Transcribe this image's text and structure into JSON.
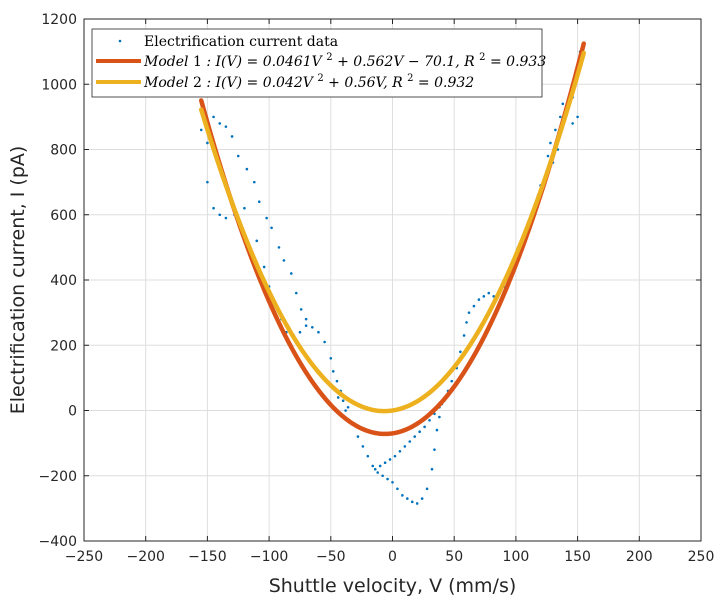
{
  "chart_data": {
    "type": "scatter",
    "title": "",
    "xlabel": "Shuttle velocity, V (mm/s)",
    "ylabel": "Electrification current, I (pA)",
    "xlim": [
      -250,
      250
    ],
    "ylim": [
      -400,
      1200
    ],
    "xticks": [
      -250,
      -200,
      -150,
      -100,
      -50,
      0,
      50,
      100,
      150,
      200,
      250
    ],
    "xtick_labels": [
      "−250",
      "−200",
      "−150",
      "−100",
      "−50",
      "0",
      "50",
      "100",
      "150",
      "200",
      "250"
    ],
    "yticks": [
      -400,
      -200,
      0,
      200,
      400,
      600,
      800,
      1000,
      1200
    ],
    "ytick_labels": [
      "−400",
      "−200",
      "0",
      "200",
      "400",
      "600",
      "800",
      "1000",
      "1200"
    ],
    "grid": true,
    "legend_position": "top-left",
    "series": [
      {
        "name": "Electrification current data",
        "kind": "scatter",
        "color": "#0072BD",
        "description_points": [
          [
            -155,
            860
          ],
          [
            -150,
            820
          ],
          [
            -145,
            900
          ],
          [
            -140,
            880
          ],
          [
            -135,
            870
          ],
          [
            -130,
            840
          ],
          [
            -150,
            700
          ],
          [
            -145,
            620
          ],
          [
            -140,
            600
          ],
          [
            -135,
            590
          ],
          [
            -128,
            600
          ],
          [
            -120,
            620
          ],
          [
            -125,
            780
          ],
          [
            -118,
            740
          ],
          [
            -112,
            700
          ],
          [
            -108,
            640
          ],
          [
            -102,
            590
          ],
          [
            -98,
            560
          ],
          [
            -92,
            500
          ],
          [
            -88,
            460
          ],
          [
            -82,
            420
          ],
          [
            -78,
            360
          ],
          [
            -74,
            310
          ],
          [
            -70,
            280
          ],
          [
            -110,
            520
          ],
          [
            -104,
            440
          ],
          [
            -100,
            380
          ],
          [
            -95,
            320
          ],
          [
            -90,
            280
          ],
          [
            -86,
            240
          ],
          [
            -80,
            230
          ],
          [
            -75,
            240
          ],
          [
            -70,
            260
          ],
          [
            -65,
            255
          ],
          [
            -60,
            240
          ],
          [
            -55,
            210
          ],
          [
            -50,
            160
          ],
          [
            -48,
            120
          ],
          [
            -45,
            90
          ],
          [
            -42,
            60
          ],
          [
            -40,
            30
          ],
          [
            -36,
            10
          ],
          [
            -50,
            80
          ],
          [
            -44,
            40
          ],
          [
            -38,
            0
          ],
          [
            -32,
            -40
          ],
          [
            -28,
            -80
          ],
          [
            -24,
            -110
          ],
          [
            -20,
            -140
          ],
          [
            -16,
            -170
          ],
          [
            -12,
            -190
          ],
          [
            -8,
            -200
          ],
          [
            -4,
            -210
          ],
          [
            0,
            -220
          ],
          [
            4,
            -240
          ],
          [
            8,
            -260
          ],
          [
            12,
            -270
          ],
          [
            16,
            -280
          ],
          [
            20,
            -285
          ],
          [
            24,
            -270
          ],
          [
            28,
            -240
          ],
          [
            32,
            -180
          ],
          [
            34,
            -120
          ],
          [
            36,
            -60
          ],
          [
            38,
            -20
          ],
          [
            40,
            20
          ],
          [
            -14,
            -180
          ],
          [
            -10,
            -170
          ],
          [
            -6,
            -160
          ],
          [
            -2,
            -150
          ],
          [
            2,
            -140
          ],
          [
            6,
            -125
          ],
          [
            10,
            -110
          ],
          [
            14,
            -95
          ],
          [
            18,
            -80
          ],
          [
            22,
            -65
          ],
          [
            26,
            -50
          ],
          [
            30,
            -30
          ],
          [
            34,
            -10
          ],
          [
            38,
            10
          ],
          [
            42,
            30
          ],
          [
            45,
            60
          ],
          [
            48,
            90
          ],
          [
            52,
            130
          ],
          [
            55,
            180
          ],
          [
            58,
            230
          ],
          [
            60,
            270
          ],
          [
            62,
            300
          ],
          [
            66,
            320
          ],
          [
            70,
            340
          ],
          [
            74,
            350
          ],
          [
            78,
            360
          ],
          [
            82,
            350
          ],
          [
            86,
            360
          ],
          [
            90,
            380
          ],
          [
            94,
            400
          ],
          [
            98,
            440
          ],
          [
            102,
            480
          ],
          [
            106,
            520
          ],
          [
            110,
            560
          ],
          [
            114,
            610
          ],
          [
            118,
            660
          ],
          [
            120,
            690
          ],
          [
            124,
            720
          ],
          [
            126,
            780
          ],
          [
            128,
            820
          ],
          [
            132,
            860
          ],
          [
            136,
            900
          ],
          [
            138,
            940
          ],
          [
            142,
            950
          ],
          [
            146,
            960
          ],
          [
            148,
            1000
          ],
          [
            150,
            1050
          ],
          [
            152,
            1100
          ],
          [
            150,
            900
          ],
          [
            146,
            880
          ],
          [
            140,
            920
          ],
          [
            134,
            800
          ],
          [
            130,
            760
          ],
          [
            122,
            700
          ]
        ]
      },
      {
        "name": "Model1 : I(V) = 0.0461V^2 + 0.562V − 70.1, R^2 = 0.933",
        "kind": "line",
        "color": "#D95319",
        "coefficients": {
          "a": 0.0461,
          "b": 0.562,
          "c": -70.1
        },
        "x_range": [
          -155,
          155
        ]
      },
      {
        "name": "Model2 : I(V) = 0.042V^2 + 0.56V, R^2 = 0.932",
        "kind": "line",
        "color": "#EDB120",
        "coefficients": {
          "a": 0.042,
          "b": 0.56,
          "c": 0
        },
        "x_range": [
          -155,
          155
        ]
      }
    ]
  },
  "legend": {
    "data_label": "Electrification current data",
    "model1": {
      "prefix": "Model",
      "index": "1",
      "formula": " : I(V) = 0.0461V",
      "power": "2",
      "rest": " + 0.562V − 70.1, R",
      "r_power": "2",
      "tail": " = 0.933"
    },
    "model2": {
      "prefix": "Model",
      "index": "2",
      "formula": " : I(V) = 0.042V",
      "power": "2",
      "rest": " + 0.56V, R",
      "r_power": "2",
      "tail": " = 0.932"
    }
  }
}
